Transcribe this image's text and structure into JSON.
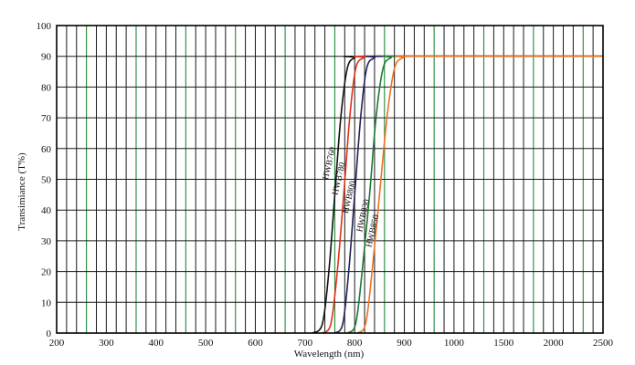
{
  "chart_data": {
    "type": "line",
    "title": "",
    "xlabel": "Wavelength (nm)",
    "ylabel": "Transimiance (T%)",
    "x_ticks": [
      "200",
      "300",
      "400",
      "500",
      "600",
      "700",
      "800",
      "900",
      "1000",
      "1500",
      "2000",
      "2500"
    ],
    "y_ticks": [
      "0",
      "10",
      "20",
      "30",
      "40",
      "50",
      "60",
      "70",
      "80",
      "90",
      "100"
    ],
    "ylim": [
      0,
      100
    ],
    "grid": true,
    "series": [
      {
        "name": "HWB760",
        "color": "#111111",
        "points": [
          [
            715,
            0
          ],
          [
            735,
            3
          ],
          [
            748,
            20
          ],
          [
            760,
            45
          ],
          [
            772,
            70
          ],
          [
            785,
            86
          ],
          [
            800,
            89.5
          ],
          [
            820,
            90
          ],
          [
            2500,
            90
          ]
        ]
      },
      {
        "name": "HWB780",
        "color": "#e03018",
        "points": [
          [
            735,
            0
          ],
          [
            752,
            3
          ],
          [
            765,
            20
          ],
          [
            778,
            45
          ],
          [
            790,
            70
          ],
          [
            802,
            86
          ],
          [
            818,
            89.5
          ],
          [
            838,
            90
          ],
          [
            2500,
            90
          ]
        ]
      },
      {
        "name": "HWB800",
        "color": "#23235a",
        "points": [
          [
            760,
            0
          ],
          [
            776,
            3
          ],
          [
            788,
            20
          ],
          [
            800,
            45
          ],
          [
            812,
            70
          ],
          [
            824,
            86
          ],
          [
            840,
            89.5
          ],
          [
            862,
            90
          ],
          [
            2500,
            90
          ]
        ]
      },
      {
        "name": "HWB830",
        "color": "#1e7a30",
        "points": [
          [
            785,
            0
          ],
          [
            802,
            3
          ],
          [
            815,
            20
          ],
          [
            830,
            45
          ],
          [
            843,
            70
          ],
          [
            857,
            86
          ],
          [
            873,
            89.5
          ],
          [
            895,
            90
          ],
          [
            2500,
            90
          ]
        ]
      },
      {
        "name": "HWB850",
        "color": "#f07020",
        "points": [
          [
            805,
            0
          ],
          [
            822,
            3
          ],
          [
            835,
            20
          ],
          [
            850,
            45
          ],
          [
            865,
            70
          ],
          [
            880,
            86
          ],
          [
            897,
            89.5
          ],
          [
            918,
            90
          ],
          [
            2500,
            90
          ]
        ]
      }
    ]
  }
}
